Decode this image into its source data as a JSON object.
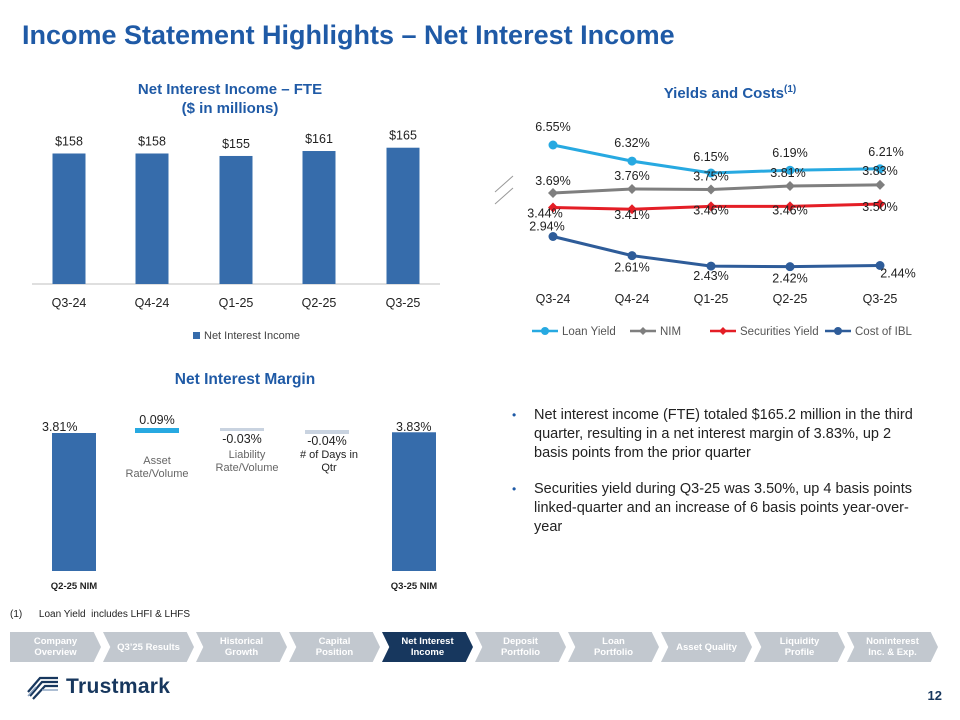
{
  "title": "Income Statement Highlights – Net Interest Income",
  "nii_chart": {
    "title_line1": "Net Interest Income – FTE",
    "title_line2": "($ in millions)",
    "legend": "Net Interest Income",
    "color": "#366cab"
  },
  "yields_chart": {
    "title": "Yields and Costs",
    "title_sup": "(1)"
  },
  "nim_chart": {
    "title": "Net Interest Margin",
    "start_label": "Q2-25 NIM",
    "end_label": "Q3-25 NIM",
    "up_color": "#27a9e1",
    "down_color": "#c9d3e0"
  },
  "bullets": [
    "Net interest income (FTE) totaled $165.2 million in the third quarter, resulting in a net interest margin of 3.83%, up 2 basis points from the prior quarter",
    "Securities yield during Q3-25 was 3.50%, up 4 basis points linked-quarter and an increase of 6 basis points year-over-year"
  ],
  "footnote": "(1)      Loan Yield  includes LHFI & LHFS",
  "nav": [
    {
      "label": "Company Overview",
      "active": false
    },
    {
      "label": "Q3’25 Results",
      "active": false
    },
    {
      "label": "Historical Growth",
      "active": false
    },
    {
      "label": "Capital Position",
      "active": false
    },
    {
      "label": "Net Interest Income",
      "active": true
    },
    {
      "label": "Deposit Portfolio",
      "active": false
    },
    {
      "label": "Loan Portfolio",
      "active": false
    },
    {
      "label": "Asset Quality",
      "active": false
    },
    {
      "label": "Liquidity Profile",
      "active": false
    },
    {
      "label": "Noninterest Inc. & Exp.",
      "active": false
    }
  ],
  "logo_text": "Trustmark",
  "page_number": "12",
  "chart_data": [
    {
      "type": "bar",
      "title": "Net Interest Income – FTE ($ in millions)",
      "categories": [
        "Q3-24",
        "Q4-24",
        "Q1-25",
        "Q2-25",
        "Q3-25"
      ],
      "series": [
        {
          "name": "Net Interest Income",
          "values": [
            158,
            158,
            155,
            161,
            165
          ]
        }
      ],
      "data_labels": [
        "$158",
        "$158",
        "$155",
        "$161",
        "$165"
      ],
      "legend": "bottom",
      "grid": false
    },
    {
      "type": "line",
      "title": "Yields and Costs",
      "categories": [
        "Q3-24",
        "Q4-24",
        "Q1-25",
        "Q2-25",
        "Q3-25"
      ],
      "series": [
        {
          "name": "Loan Yield",
          "color": "#27a9e1",
          "values": [
            6.55,
            6.32,
            6.15,
            6.19,
            6.21
          ],
          "labels": [
            "6.55%",
            "6.32%",
            "6.15%",
            "6.19%",
            "6.21%"
          ]
        },
        {
          "name": "NIM",
          "color": "#7f7f7f",
          "values": [
            3.69,
            3.76,
            3.75,
            3.81,
            3.83
          ],
          "labels": [
            "3.69%",
            "3.76%",
            "3.75%",
            "3.81%",
            "3.83%"
          ]
        },
        {
          "name": "Securities Yield",
          "color": "#e41e26",
          "values": [
            3.44,
            3.41,
            3.46,
            3.46,
            3.5
          ],
          "labels": [
            "3.44%",
            "3.41%",
            "3.46%",
            "3.46%",
            "3.50%"
          ]
        },
        {
          "name": "Cost of IBL",
          "color": "#2e5c99",
          "values": [
            2.94,
            2.61,
            2.43,
            2.42,
            2.44
          ],
          "labels": [
            "2.94%",
            "2.61%",
            "2.43%",
            "2.42%",
            "2.44%"
          ]
        }
      ],
      "axis_break": true,
      "legend": "bottom",
      "grid": false
    },
    {
      "type": "bar",
      "subtype": "waterfall",
      "title": "Net Interest Margin",
      "categories": [
        "Q2-25 NIM",
        "Asset Rate/Volume",
        "Liability Rate/Volume",
        "# of Days in Qtr",
        "Q3-25 NIM"
      ],
      "values": [
        3.81,
        0.09,
        -0.03,
        -0.04,
        3.83
      ],
      "data_labels": [
        "3.81%",
        "0.09%",
        "-0.03%",
        "-0.04%",
        "3.83%"
      ],
      "legend": "none",
      "grid": false
    }
  ]
}
